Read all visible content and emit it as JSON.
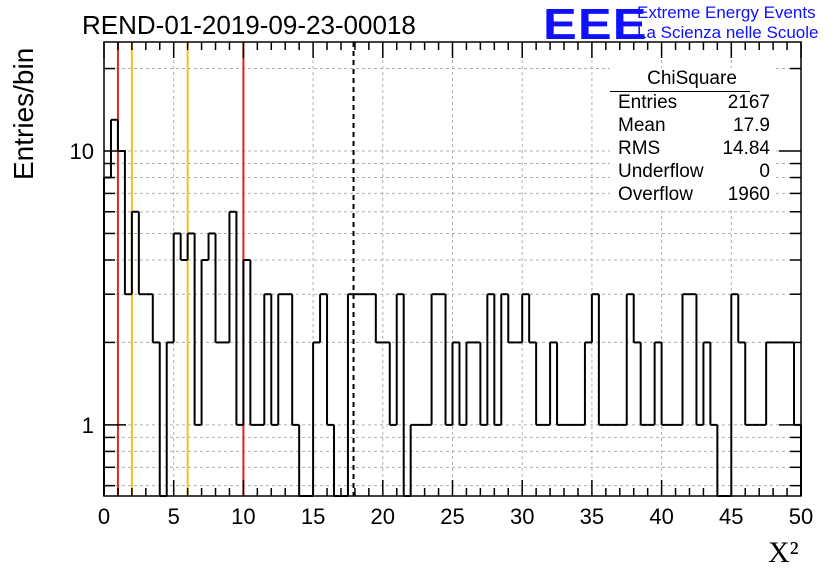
{
  "title": "REND-01-2019-09-23-00018",
  "logo": {
    "mark": "EEE",
    "line1": "Extreme Energy Events",
    "line2": "La Scienza nelle Scuole",
    "color": "#1010ff"
  },
  "stats_box": {
    "title": "ChiSquare",
    "rows": [
      {
        "label": "Entries",
        "value": "2167"
      },
      {
        "label": "Mean",
        "value": "17.9"
      },
      {
        "label": "RMS",
        "value": "14.84"
      },
      {
        "label": "Underflow",
        "value": "0"
      },
      {
        "label": "Overflow",
        "value": "1960"
      }
    ]
  },
  "chart_data": {
    "type": "bar",
    "histogram": true,
    "title": "REND-01-2019-09-23-00018",
    "xlabel": "X²",
    "ylabel": "Entries/bin",
    "xlim": [
      0,
      50
    ],
    "ylim": [
      0.55,
      25
    ],
    "yscale": "log",
    "grid": true,
    "bin_width": 0.5,
    "x_ticks": [
      0,
      5,
      10,
      15,
      20,
      25,
      30,
      35,
      40,
      45,
      50
    ],
    "y_ticks": [
      {
        "value": 1,
        "label": "1"
      },
      {
        "value": 10,
        "label": "10"
      }
    ],
    "values": [
      8,
      13,
      10,
      3,
      6,
      3,
      3,
      2,
      0,
      2,
      5,
      4,
      5,
      1,
      4,
      5,
      2,
      2,
      6,
      1,
      4,
      1,
      1,
      3,
      1,
      3,
      3,
      1,
      0,
      0,
      2,
      3,
      1,
      0,
      0,
      3,
      3,
      3,
      3,
      2,
      2,
      1,
      3,
      0,
      1,
      1,
      1,
      3,
      3,
      1,
      2,
      1,
      2,
      2,
      1,
      3,
      1,
      3,
      2,
      2,
      3,
      2,
      1,
      1,
      2,
      1,
      1,
      1,
      1,
      2,
      3,
      1,
      1,
      1,
      1,
      3,
      2,
      1,
      1,
      2,
      1,
      1,
      1,
      3,
      3,
      1,
      2,
      1,
      0,
      0,
      3,
      2,
      1,
      1,
      1,
      2,
      2,
      2,
      2,
      1
    ],
    "vertical_lines": [
      {
        "x": 1,
        "color": "#e62020",
        "style": "solid"
      },
      {
        "x": 2,
        "color": "#f0c020",
        "style": "solid"
      },
      {
        "x": 6,
        "color": "#f0c020",
        "style": "solid"
      },
      {
        "x": 10,
        "color": "#e62020",
        "style": "solid"
      },
      {
        "x": 17.9,
        "color": "#000000",
        "style": "dashed"
      }
    ],
    "colors": {
      "line": "#000000",
      "grid": "#b0b0b0"
    }
  }
}
